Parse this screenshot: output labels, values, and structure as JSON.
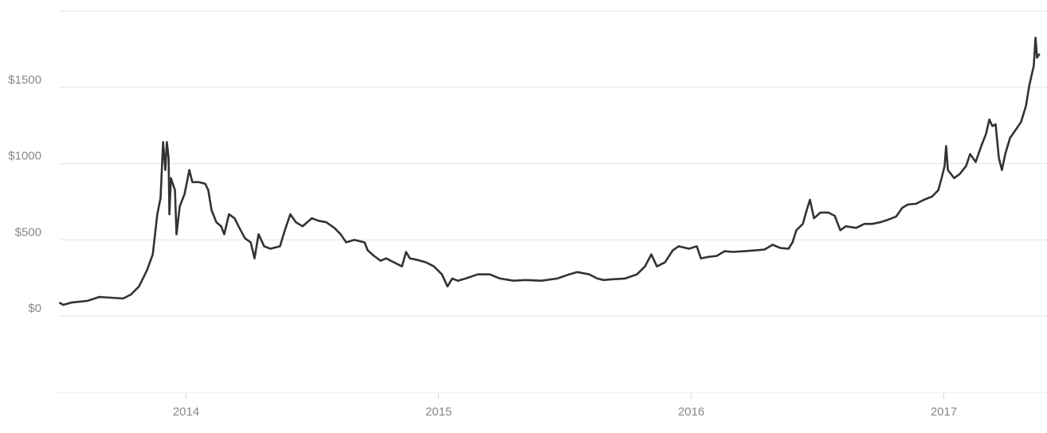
{
  "chart_data": {
    "type": "line",
    "color": "#333333",
    "grid": true,
    "xlim": [
      2013.5,
      2017.38
    ],
    "xticks": [
      2014,
      2015,
      2016,
      2017
    ],
    "ylim": [
      -500,
      2000
    ],
    "yticks": [
      {
        "value": 0,
        "label": "$0"
      },
      {
        "value": 500,
        "label": "$500"
      },
      {
        "value": 1000,
        "label": "$1000"
      },
      {
        "value": 1500,
        "label": "$1500"
      }
    ],
    "x": [
      2013.498,
      2013.514,
      2013.546,
      2013.609,
      2013.656,
      2013.703,
      2013.751,
      2013.782,
      2013.814,
      2013.845,
      2013.868,
      2013.886,
      2013.899,
      2013.909,
      2013.918,
      2013.924,
      2013.931,
      2013.934,
      2013.94,
      2013.956,
      2013.962,
      2013.975,
      2013.994,
      2014.013,
      2014.025,
      2014.05,
      2014.076,
      2014.088,
      2014.101,
      2014.12,
      2014.139,
      2014.151,
      2014.17,
      2014.192,
      2014.208,
      2014.233,
      2014.256,
      2014.271,
      2014.287,
      2014.309,
      2014.334,
      2014.372,
      2014.391,
      2014.413,
      2014.435,
      2014.461,
      2014.498,
      2014.524,
      2014.555,
      2014.587,
      2014.612,
      2014.634,
      2014.666,
      2014.707,
      2014.719,
      2014.744,
      2014.77,
      2014.792,
      2014.823,
      2014.855,
      2014.871,
      2014.886,
      2014.918,
      2014.95,
      2014.981,
      2015.013,
      2015.035,
      2015.054,
      2015.076,
      2015.107,
      2015.155,
      2015.202,
      2015.243,
      2015.297,
      2015.344,
      2015.407,
      2015.47,
      2015.517,
      2015.549,
      2015.596,
      2015.628,
      2015.653,
      2015.691,
      2015.738,
      2015.785,
      2015.817,
      2015.842,
      2015.864,
      2015.896,
      2015.927,
      2015.95,
      2015.991,
      2016.022,
      2016.038,
      2016.069,
      2016.101,
      2016.132,
      2016.164,
      2016.211,
      2016.259,
      2016.29,
      2016.322,
      2016.353,
      2016.385,
      2016.401,
      2016.416,
      2016.442,
      2016.457,
      2016.47,
      2016.486,
      2016.511,
      2016.543,
      2016.568,
      2016.59,
      2016.612,
      2016.653,
      2016.685,
      2016.716,
      2016.748,
      2016.779,
      2016.811,
      2016.836,
      2016.858,
      2016.89,
      2016.921,
      2016.953,
      2016.978,
      2016.991,
      2017.003,
      2017.009,
      2017.016,
      2017.041,
      2017.063,
      2017.088,
      2017.104,
      2017.126,
      2017.148,
      2017.167,
      2017.18,
      2017.192,
      2017.205,
      2017.218,
      2017.23,
      2017.243,
      2017.262,
      2017.284,
      2017.306,
      2017.325,
      2017.338,
      2017.356,
      2017.363,
      2017.369,
      2017.379
    ],
    "values": [
      89,
      74,
      89,
      100,
      126,
      121,
      116,
      142,
      195,
      300,
      405,
      668,
      774,
      1142,
      958,
      1142,
      1037,
      668,
      905,
      826,
      537,
      721,
      800,
      958,
      879,
      879,
      868,
      826,
      695,
      616,
      589,
      537,
      668,
      642,
      589,
      511,
      484,
      379,
      537,
      458,
      442,
      458,
      563,
      668,
      616,
      589,
      642,
      626,
      616,
      579,
      537,
      484,
      500,
      484,
      432,
      395,
      363,
      379,
      353,
      326,
      421,
      379,
      368,
      353,
      326,
      274,
      195,
      247,
      232,
      247,
      274,
      274,
      247,
      232,
      237,
      232,
      247,
      274,
      289,
      274,
      247,
      237,
      242,
      247,
      274,
      326,
      405,
      326,
      353,
      432,
      458,
      442,
      458,
      379,
      389,
      395,
      426,
      421,
      426,
      432,
      437,
      468,
      447,
      442,
      484,
      563,
      605,
      695,
      763,
      642,
      679,
      679,
      658,
      563,
      589,
      579,
      605,
      605,
      616,
      632,
      653,
      711,
      732,
      737,
      763,
      784,
      826,
      905,
      984,
      1116,
      958,
      905,
      932,
      984,
      1063,
      1011,
      1116,
      1195,
      1289,
      1247,
      1258,
      1037,
      958,
      1063,
      1168,
      1221,
      1274,
      1379,
      1511,
      1642,
      1826,
      1695,
      1721
    ]
  }
}
